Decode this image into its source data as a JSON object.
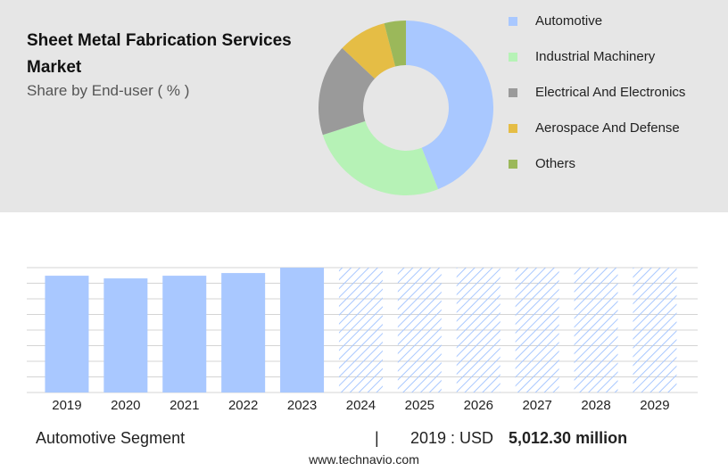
{
  "chart_data": [
    {
      "type": "pie",
      "title": "Sheet Metal Fabrication Services Market",
      "subtitle": "Share by End-user ( % )",
      "categories": [
        "Automotive",
        "Industrial Machinery",
        "Electrical And Electronics",
        "Aerospace And Defense",
        "Others"
      ],
      "values": [
        44,
        26,
        17,
        9,
        4
      ],
      "colors": [
        "#a9c8ff",
        "#b6f2b6",
        "#9a9a9a",
        "#e5bd45",
        "#9bb85a"
      ]
    },
    {
      "type": "bar",
      "categories": [
        "2019",
        "2020",
        "2021",
        "2022",
        "2023",
        "2024",
        "2025",
        "2026",
        "2027",
        "2028",
        "2029"
      ],
      "values": [
        5012.3,
        4897,
        5012,
        5127,
        5357,
        null,
        null,
        null,
        null,
        null,
        null
      ],
      "color": "#a9c8ff",
      "ylim": [
        0,
        5360
      ],
      "yticks": [
        0,
        670,
        1340,
        2010,
        2680,
        3350,
        4020,
        4690,
        5360
      ],
      "grid": true
    }
  ],
  "footer": {
    "segment": "Automotive Segment",
    "separator": "|",
    "year_label": "2019 : USD",
    "value": "5,012.30 million",
    "site": "www.technavio.com"
  }
}
